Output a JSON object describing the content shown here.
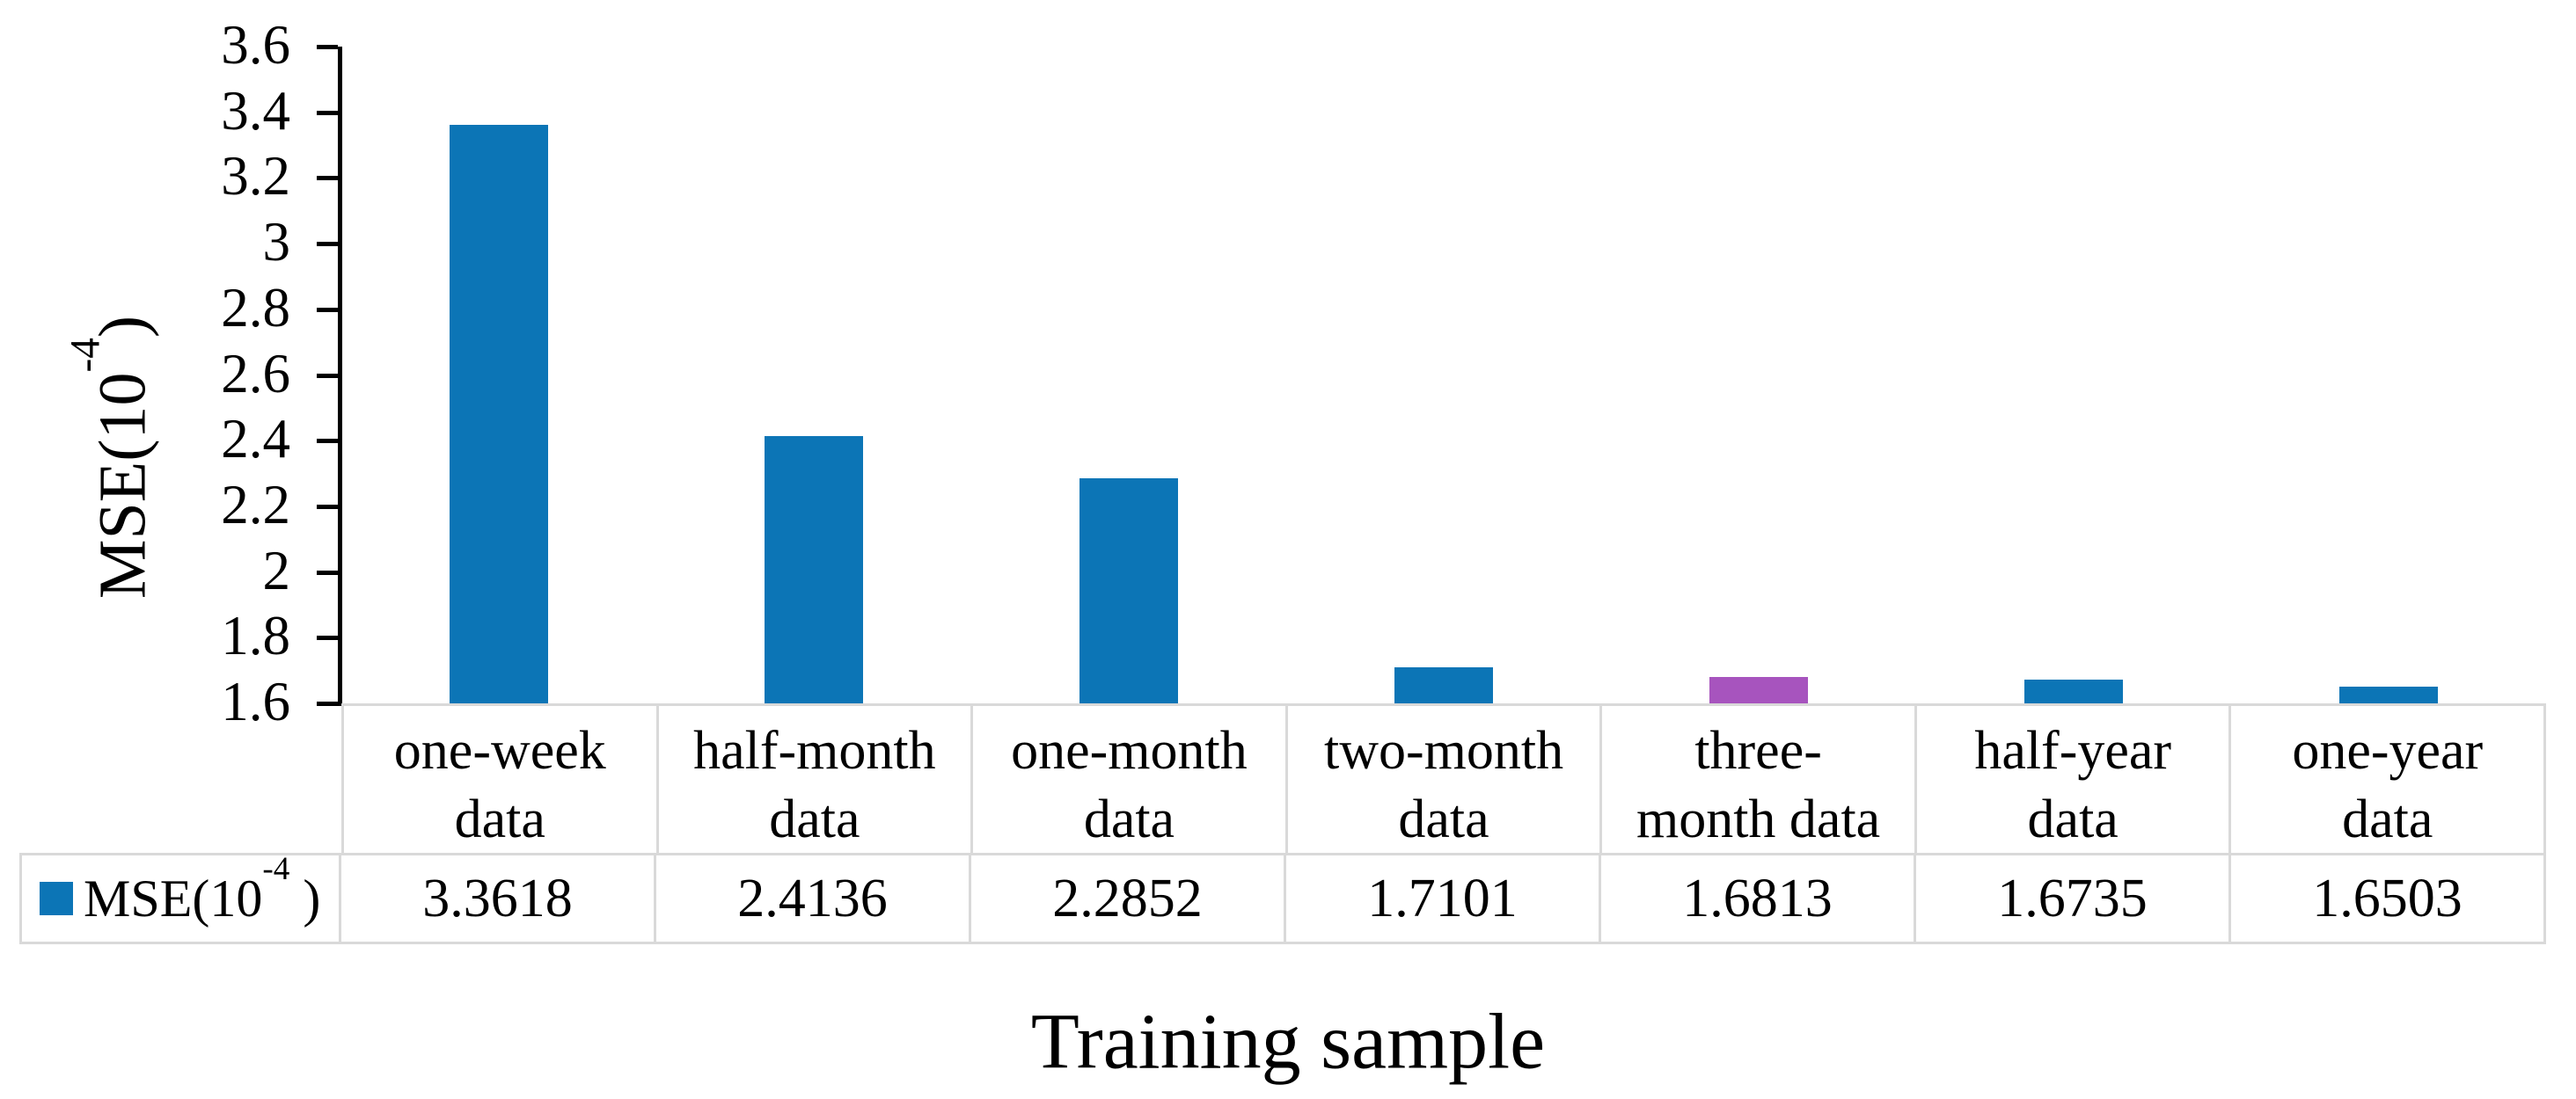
{
  "figure": {
    "y_axis_title": {
      "prefix": "MSE(10",
      "sup": "-4",
      "suffix": ")"
    },
    "x_axis_title": "Training sample",
    "legend": {
      "prefix": "MSE(10",
      "sup": "-4",
      "suffix": " )"
    }
  },
  "chart_data": {
    "type": "bar",
    "title": "",
    "xlabel": "Training sample",
    "ylabel": "MSE(10^-4)",
    "categories": [
      "one-week data",
      "half-month data",
      "one-month data",
      "two-month data",
      "three-month data",
      "half-year data",
      "one-year data"
    ],
    "category_lines": [
      [
        "one-week",
        "data"
      ],
      [
        "half-month",
        "data"
      ],
      [
        "one-month",
        "data"
      ],
      [
        "two-month",
        "data"
      ],
      [
        "three-",
        "month data"
      ],
      [
        "half-year",
        "data"
      ],
      [
        "one-year",
        "data"
      ]
    ],
    "series": [
      {
        "name": "MSE(10^-4)",
        "values": [
          3.3618,
          2.4136,
          2.2852,
          1.7101,
          1.6813,
          1.6735,
          1.6503
        ]
      }
    ],
    "value_labels": [
      "3.3618",
      "2.4136",
      "2.2852",
      "1.7101",
      "1.6813",
      "1.6735",
      "1.6503"
    ],
    "ylim": [
      1.6,
      3.6
    ],
    "ytick_labels": [
      "3.6",
      "3.4",
      "3.2",
      "3",
      "2.8",
      "2.6",
      "2.4",
      "2.2",
      "2",
      "1.8",
      "1.6"
    ],
    "grid": false,
    "legend_position": "bottom-table-left",
    "bar_colors": [
      "#0C75B6",
      "#0C75B6",
      "#0C75B6",
      "#0C75B6",
      "#A754BE",
      "#0C75B6",
      "#0C75B6"
    ]
  },
  "colors": {
    "bar_blue": "#0C75B6",
    "bar_purple": "#A754BE",
    "table_border": "#D9D9D9",
    "axis": "#000000",
    "background": "#FFFFFF",
    "text": "#000000"
  }
}
